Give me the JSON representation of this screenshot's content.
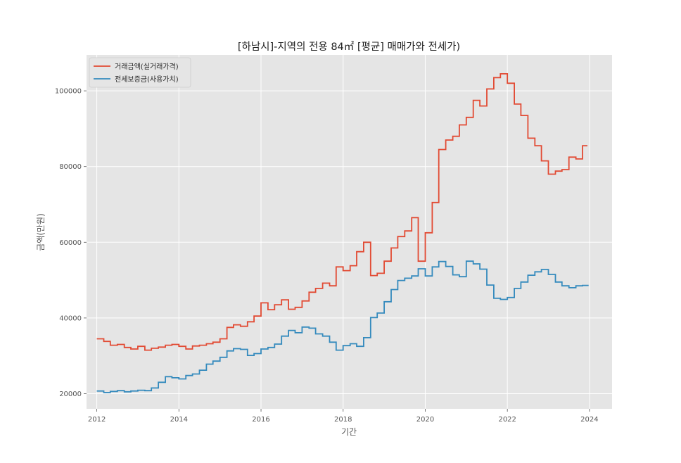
{
  "chart_data": {
    "type": "line",
    "title": "[하남시]-지역의 전용 84㎡ [평균] 매매가와 전세가)",
    "xlabel": "기간",
    "ylabel": "금액(만원)",
    "xlim": [
      2011.75,
      2024.55
    ],
    "ylim": [
      16000,
      109500
    ],
    "xticks": [
      2012,
      2014,
      2016,
      2018,
      2020,
      2022,
      2024
    ],
    "yticks": [
      20000,
      40000,
      60000,
      80000,
      100000
    ],
    "grid": true,
    "legend_position": "top-left",
    "step": "post",
    "series": [
      {
        "name": "거래금액(실거래가격)",
        "color": "#E24A33",
        "x": [
          2012.0,
          2012.17,
          2012.33,
          2012.5,
          2012.67,
          2012.83,
          2013.0,
          2013.17,
          2013.33,
          2013.5,
          2013.67,
          2013.83,
          2014.0,
          2014.17,
          2014.33,
          2014.5,
          2014.67,
          2014.83,
          2015.0,
          2015.17,
          2015.33,
          2015.5,
          2015.67,
          2015.83,
          2016.0,
          2016.17,
          2016.33,
          2016.5,
          2016.67,
          2016.83,
          2017.0,
          2017.17,
          2017.33,
          2017.5,
          2017.67,
          2017.83,
          2018.0,
          2018.17,
          2018.33,
          2018.5,
          2018.67,
          2018.83,
          2019.0,
          2019.17,
          2019.33,
          2019.5,
          2019.67,
          2019.83,
          2020.0,
          2020.17,
          2020.33,
          2020.5,
          2020.67,
          2020.83,
          2021.0,
          2021.17,
          2021.33,
          2021.5,
          2021.67,
          2021.83,
          2022.0,
          2022.17,
          2022.33,
          2022.5,
          2022.67,
          2022.83,
          2023.0,
          2023.17,
          2023.33,
          2023.5,
          2023.67,
          2023.83
        ],
        "values": [
          34500,
          33800,
          32800,
          33000,
          32200,
          31800,
          32500,
          31500,
          32000,
          32300,
          32800,
          33000,
          32500,
          31800,
          32600,
          32800,
          33200,
          33600,
          34500,
          37500,
          38200,
          37800,
          39000,
          40500,
          44000,
          42200,
          43500,
          44800,
          42300,
          42800,
          44500,
          46800,
          47800,
          49200,
          48500,
          53500,
          52500,
          53800,
          57500,
          60000,
          51200,
          51800,
          55000,
          58500,
          61500,
          63000,
          66500,
          55000,
          62500,
          70500,
          84500,
          87000,
          88000,
          91000,
          93000,
          97500,
          96000,
          100500,
          103500,
          104500,
          102000,
          96500,
          93500,
          87500,
          85500,
          81500,
          78000,
          78800,
          79200,
          82500,
          82000,
          85500
        ],
        "x_end": 2023.95
      },
      {
        "name": "전세보증금(사용가치)",
        "color": "#348ABD",
        "x": [
          2012.0,
          2012.17,
          2012.33,
          2012.5,
          2012.67,
          2012.83,
          2013.0,
          2013.17,
          2013.33,
          2013.5,
          2013.67,
          2013.83,
          2014.0,
          2014.17,
          2014.33,
          2014.5,
          2014.67,
          2014.83,
          2015.0,
          2015.17,
          2015.33,
          2015.5,
          2015.67,
          2015.83,
          2016.0,
          2016.17,
          2016.33,
          2016.5,
          2016.67,
          2016.83,
          2017.0,
          2017.17,
          2017.33,
          2017.5,
          2017.67,
          2017.83,
          2018.0,
          2018.17,
          2018.33,
          2018.5,
          2018.67,
          2018.83,
          2019.0,
          2019.17,
          2019.33,
          2019.5,
          2019.67,
          2019.83,
          2020.0,
          2020.17,
          2020.33,
          2020.5,
          2020.67,
          2020.83,
          2021.0,
          2021.17,
          2021.33,
          2021.5,
          2021.67,
          2021.83,
          2022.0,
          2022.17,
          2022.33,
          2022.5,
          2022.67,
          2022.83,
          2023.0,
          2023.17,
          2023.33,
          2023.5,
          2023.67,
          2023.83
        ],
        "values": [
          20700,
          20300,
          20600,
          20800,
          20500,
          20700,
          20900,
          20800,
          21500,
          23000,
          24500,
          24200,
          23900,
          24800,
          25200,
          26200,
          27800,
          28600,
          29600,
          31300,
          31900,
          31700,
          30100,
          30600,
          31800,
          32200,
          33100,
          35200,
          36700,
          36100,
          37600,
          37300,
          35800,
          35200,
          33600,
          31500,
          32700,
          33200,
          32500,
          34800,
          40100,
          41300,
          44300,
          47500,
          49900,
          50500,
          51100,
          53000,
          51100,
          53500,
          54900,
          53600,
          51400,
          50900,
          55000,
          54300,
          52900,
          48700,
          45200,
          44900,
          45400,
          47800,
          49500,
          51300,
          52200,
          52800,
          51500,
          49500,
          48500,
          48000,
          48500,
          48600
        ],
        "x_end": 2023.98
      }
    ]
  }
}
